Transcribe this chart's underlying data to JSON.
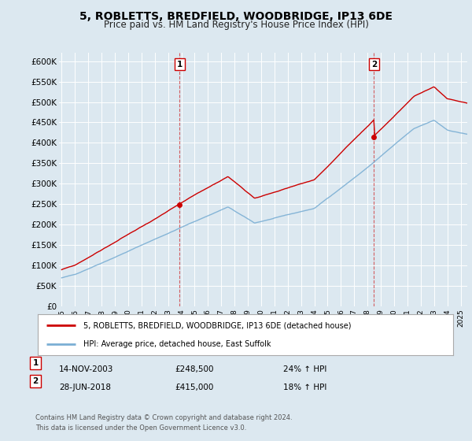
{
  "title": "5, ROBLETTS, BREDFIELD, WOODBRIDGE, IP13 6DE",
  "subtitle": "Price paid vs. HM Land Registry's House Price Index (HPI)",
  "title_fontsize": 10,
  "subtitle_fontsize": 8.5,
  "ylim": [
    0,
    620000
  ],
  "yticks": [
    0,
    50000,
    100000,
    150000,
    200000,
    250000,
    300000,
    350000,
    400000,
    450000,
    500000,
    550000,
    600000
  ],
  "ytick_labels": [
    "£0",
    "£50K",
    "£100K",
    "£150K",
    "£200K",
    "£250K",
    "£300K",
    "£350K",
    "£400K",
    "£450K",
    "£500K",
    "£550K",
    "£600K"
  ],
  "price_paid_color": "#cc0000",
  "hpi_color": "#7bafd4",
  "background_color": "#dce8f0",
  "plot_bg_color": "#dce8f0",
  "grid_color": "#ffffff",
  "sale1_x": 2003.87,
  "sale1_y": 248500,
  "sale1_label": "1",
  "sale2_x": 2018.49,
  "sale2_y": 415000,
  "sale2_label": "2",
  "legend_line1": "5, ROBLETTS, BREDFIELD, WOODBRIDGE, IP13 6DE (detached house)",
  "legend_line2": "HPI: Average price, detached house, East Suffolk",
  "annotation1_date": "14-NOV-2003",
  "annotation1_price": "£248,500",
  "annotation1_hpi": "24% ↑ HPI",
  "annotation2_date": "28-JUN-2018",
  "annotation2_price": "£415,000",
  "annotation2_hpi": "18% ↑ HPI",
  "footer": "Contains HM Land Registry data © Crown copyright and database right 2024.\nThis data is licensed under the Open Government Licence v3.0.",
  "xmin": 1994.8,
  "xmax": 2025.5,
  "hpi_seed": 42,
  "pp_seed": 99
}
